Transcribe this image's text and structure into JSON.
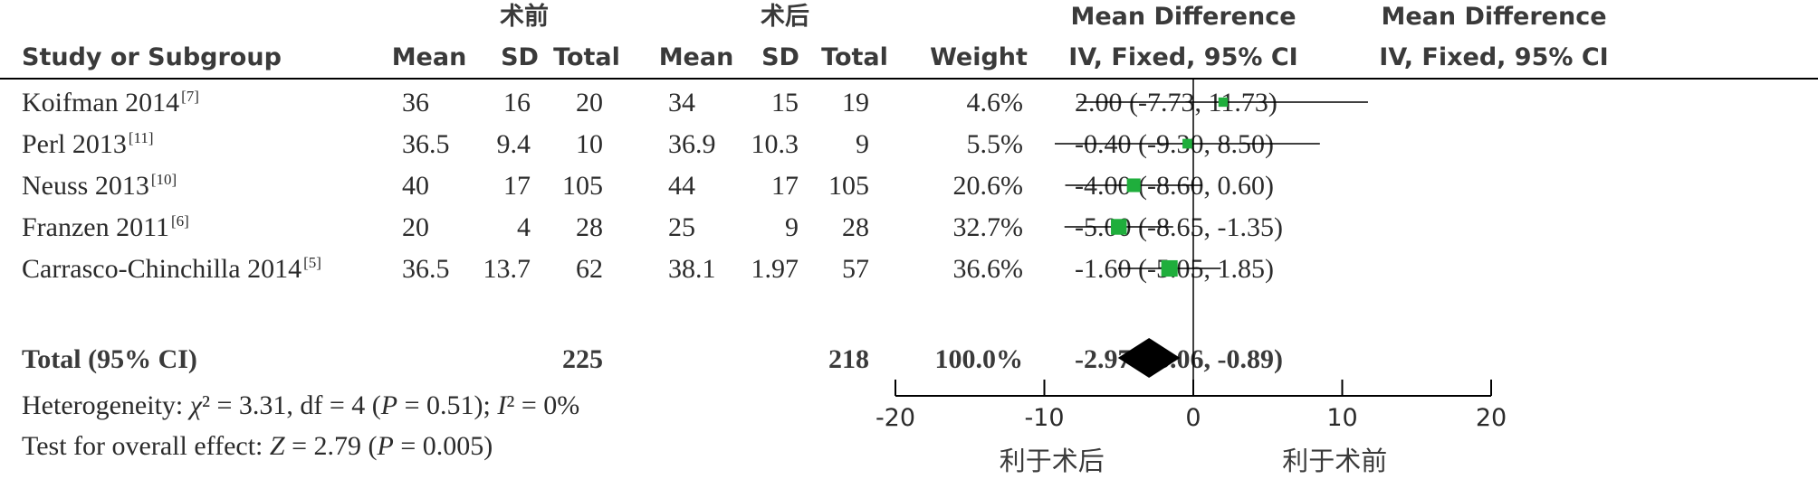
{
  "chart_data": {
    "type": "forest",
    "group_labels": {
      "pre": "术前",
      "post": "术后"
    },
    "columns": {
      "study": "Study or Subgroup",
      "mean": "Mean",
      "sd": "SD",
      "total": "Total",
      "weight": "Weight",
      "md_title": "Mean Difference",
      "md_method": "IV, Fixed, 95% CI"
    },
    "studies": [
      {
        "name": "Koifman 2014",
        "ref": "[7]",
        "pre_mean": "36",
        "pre_sd": "16",
        "pre_total": "20",
        "post_mean": "34",
        "post_sd": "15",
        "post_total": "19",
        "weight": "4.6%",
        "weight_value": 4.6,
        "md": 2.0,
        "lo": -7.73,
        "hi": 11.73,
        "ci_text": "2.00 (-7.73, 11.73)"
      },
      {
        "name": "Perl 2013",
        "ref": "[11]",
        "pre_mean": "36.5",
        "pre_sd": "9.4",
        "pre_total": "10",
        "post_mean": "36.9",
        "post_sd": "10.3",
        "post_total": "9",
        "weight": "5.5%",
        "weight_value": 5.5,
        "md": -0.4,
        "lo": -9.3,
        "hi": 8.5,
        "ci_text": "-0.40 (-9.30, 8.50)"
      },
      {
        "name": "Neuss 2013",
        "ref": "[10]",
        "pre_mean": "40",
        "pre_sd": "17",
        "pre_total": "105",
        "post_mean": "44",
        "post_sd": "17",
        "post_total": "105",
        "weight": "20.6%",
        "weight_value": 20.6,
        "md": -4.0,
        "lo": -8.6,
        "hi": 0.6,
        "ci_text": "-4.00 (-8.60, 0.60)"
      },
      {
        "name": "Franzen 2011",
        "ref": "[6]",
        "pre_mean": "20",
        "pre_sd": "4",
        "pre_total": "28",
        "post_mean": "25",
        "post_sd": "9",
        "post_total": "28",
        "weight": "32.7%",
        "weight_value": 32.7,
        "md": -5.0,
        "lo": -8.65,
        "hi": -1.35,
        "ci_text": "-5.00 (-8.65, -1.35)"
      },
      {
        "name": "Carrasco-Chinchilla 2014",
        "ref": "[5]",
        "pre_mean": "36.5",
        "pre_sd": "13.7",
        "pre_total": "62",
        "post_mean": "38.1",
        "post_sd": "1.97",
        "post_total": "57",
        "weight": "36.6%",
        "weight_value": 36.6,
        "md": -1.6,
        "lo": -5.05,
        "hi": 1.85,
        "ci_text": "-1.60 (-5.05, 1.85)"
      }
    ],
    "total": {
      "label": "Total (95% CI)",
      "pre_total": "225",
      "post_total": "218",
      "weight": "100.0%",
      "md": -2.97,
      "lo": -5.06,
      "hi": -0.89,
      "ci_text": "-2.97 (-5.06, -0.89)"
    },
    "heterogeneity": {
      "prefix": "Heterogeneity: ",
      "chi_symbol": "χ",
      "chi_rest": "² = 3.31, df = 4 (",
      "p_symbol": "P",
      "p_rest": " = 0.51); ",
      "i_symbol": "I",
      "i_rest": "² = 0%"
    },
    "overall": {
      "prefix": "Test for overall effect: ",
      "z_symbol": "Z",
      "z_rest": " = 2.79 (",
      "p_symbol": "P",
      "p_rest": " = 0.005)"
    },
    "x_axis": {
      "range": [
        -20,
        20
      ],
      "ticks": [
        -20,
        -10,
        0,
        10,
        20
      ],
      "tick_labels": [
        "-20",
        "-10",
        "0",
        "10",
        "20"
      ],
      "favours_left": "利于术后",
      "favours_right": "利于术前"
    },
    "colors": {
      "marker": "#1fae3c",
      "diamond": "#000000",
      "line": "#000000",
      "text": "#2b2b2b"
    }
  }
}
